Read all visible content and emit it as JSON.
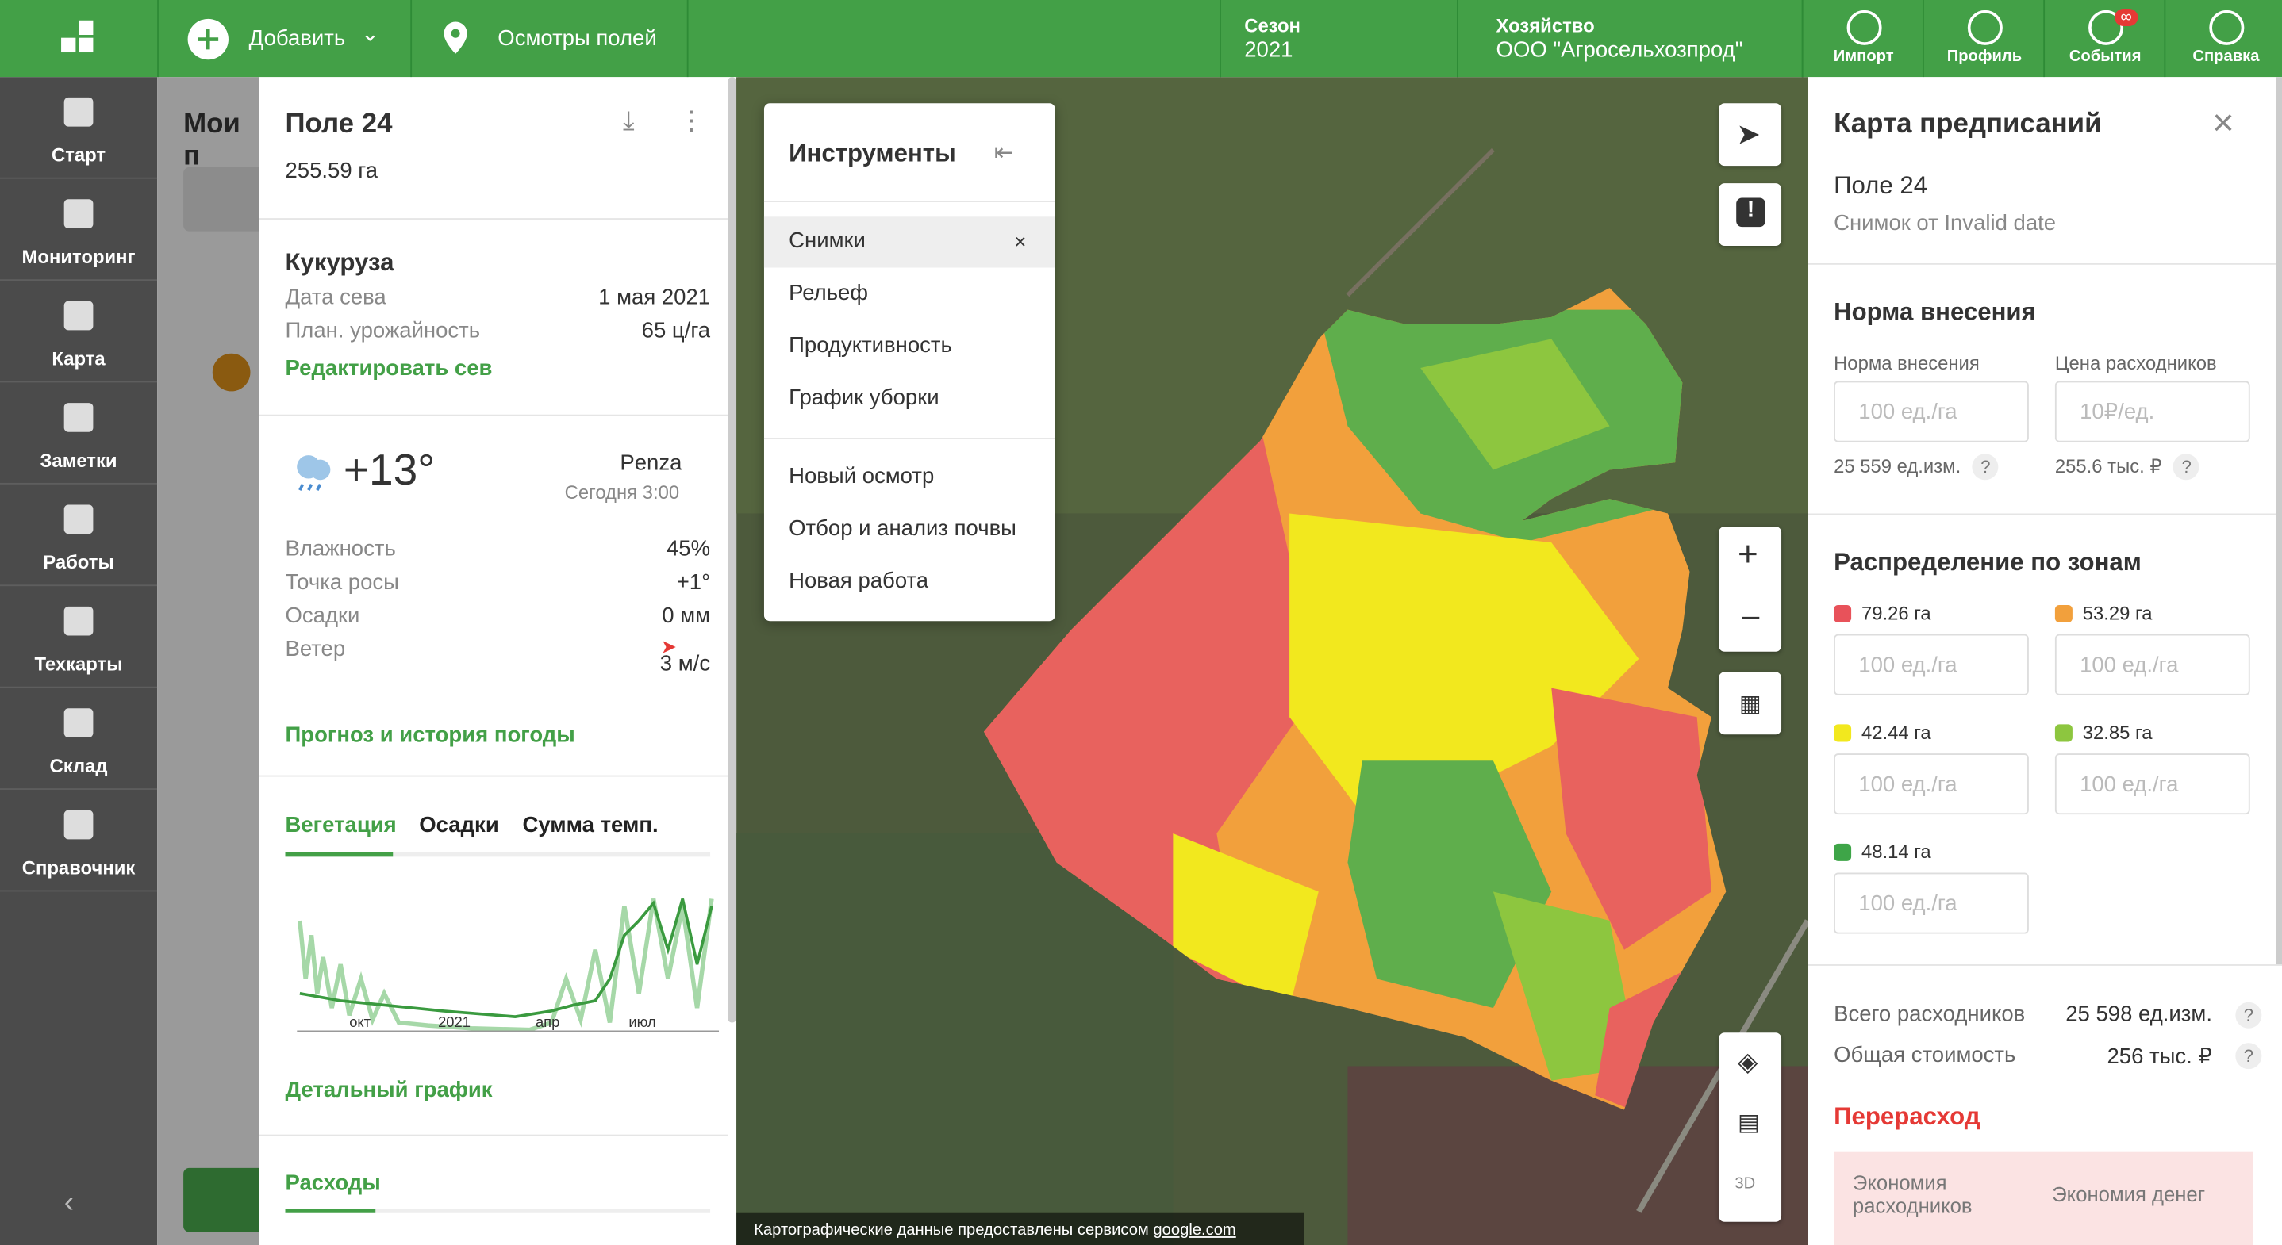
{
  "topbar": {
    "add": "Добавить",
    "inspections": "Осмотры полей",
    "season_label": "Сезон",
    "season": "2021",
    "farm_label": "Хозяйство",
    "farm": "ООО \"Агросельхозпрод\"",
    "buttons": [
      "Импорт",
      "Профиль",
      "События",
      "Справка"
    ],
    "badge": "∞"
  },
  "sidebar": {
    "items": [
      "Старт",
      "Мониторинг",
      "Карта",
      "Заметки",
      "Работы",
      "Техкарты",
      "Склад",
      "Справочник"
    ]
  },
  "fields_list": {
    "title": "Мои п"
  },
  "field_panel": {
    "title": "Поле 24",
    "area": "255.59 га",
    "crop": "Кукуруза",
    "rows": [
      [
        "Дата сева",
        "1 мая 2021"
      ],
      [
        "План. урожайность",
        "65 ц/га"
      ]
    ],
    "edit_link": "Редактировать сев",
    "weather": {
      "temp": "+13°",
      "city": "Penza",
      "time": "Сегодня 3:00",
      "rows": [
        [
          "Влажность",
          "45%"
        ],
        [
          "Точка росы",
          "+1°"
        ],
        [
          "Осадки",
          "0 мм"
        ],
        [
          "Ветер",
          "3 м/с"
        ]
      ],
      "forecast_link": "Прогноз и история погоды"
    },
    "tabs": [
      "Вегетация",
      "Осадки",
      "Сумма темп."
    ],
    "chart_ticks": [
      "окт",
      "2021",
      "апр",
      "июл"
    ],
    "detail_link": "Детальный график",
    "expenses": "Расходы"
  },
  "tools": {
    "title": "Инструменты",
    "items": [
      "Снимки",
      "Рельеф",
      "Продуктивность",
      "График уборки"
    ],
    "actions": [
      "Новый осмотр",
      "Отбор и анализ почвы",
      "Новая работа"
    ]
  },
  "map": {
    "attribution": "Картографические данные предоставлены сервисом",
    "attribution_link": "google.com"
  },
  "prescription": {
    "title": "Карта предписаний",
    "field": "Поле 24",
    "snapshot": "Снимок от Invalid date",
    "rate_section": "Норма внесения",
    "rate_label": "Норма внесения",
    "price_label": "Цена расходников",
    "rate_placeholder": "100 ед./га",
    "price_placeholder": "10₽/ед.",
    "rate_total": "25 559 ед.изм.",
    "price_total": "255.6 тыс. ₽",
    "help": "?",
    "zones_title": "Распределение по зонам",
    "zone_placeholder": "100 ед./га",
    "zones": [
      {
        "area": "79.26 га",
        "color": "#e8525a"
      },
      {
        "area": "53.29 га",
        "color": "#f2a03c"
      },
      {
        "area": "42.44 га",
        "color": "#f2e81e"
      },
      {
        "area": "32.85 га",
        "color": "#8dc63f"
      },
      {
        "area": "48.14 га",
        "color": "#3ea548"
      }
    ],
    "totals": [
      [
        "Всего расходников",
        "25 598 ед.изм."
      ],
      [
        "Общая стоимость",
        "256 тыс. ₽"
      ]
    ],
    "overspend": "Перерасход",
    "savings": [
      "Экономия расходников",
      "Экономия денег"
    ]
  }
}
